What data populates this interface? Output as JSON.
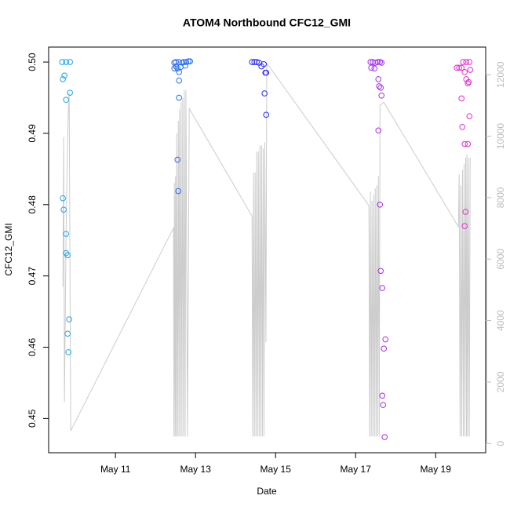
{
  "chart_data": {
    "type": "scatter",
    "title": "ATOM4 Northbound CFC12_GMI",
    "x_label": "Date",
    "y_label": "CFC12_GMI",
    "xlim": [
      9.33,
      20.25
    ],
    "xticks": [
      {
        "value": 11,
        "label": "May 11"
      },
      {
        "value": 13,
        "label": "May 13"
      },
      {
        "value": 15,
        "label": "May 15"
      },
      {
        "value": 17,
        "label": "May 17"
      },
      {
        "value": 19,
        "label": "May 19"
      }
    ],
    "ylim": [
      0.4452,
      0.5021
    ],
    "yticks": [
      0.45,
      0.46,
      0.47,
      0.48,
      0.49,
      {
        "value": 0.5,
        "label": "0.50"
      }
    ],
    "y2lim": [
      -300,
      12900
    ],
    "y2ticks": [
      0,
      2000,
      4000,
      6000,
      8000,
      10000,
      12000
    ],
    "series": [
      {
        "color": "#1fa5e8",
        "x": [
          9.667,
          9.765,
          9.863,
          9.686,
          9.725,
          9.765,
          9.863,
          9.686,
          9.706,
          9.765,
          9.765,
          9.804,
          9.843,
          9.804,
          9.824
        ],
        "values": [
          0.5,
          0.5,
          0.5,
          0.4976,
          0.4981,
          0.4947,
          0.4957,
          0.4809,
          0.4793,
          0.4759,
          0.4732,
          0.4729,
          0.4639,
          0.4619,
          0.4593
        ]
      },
      {
        "color": "#2a6be8",
        "x": [
          12.549,
          12.569,
          12.588,
          12.588,
          12.471,
          12.51,
          12.549,
          12.588,
          12.627,
          12.667,
          12.706,
          12.765,
          12.824,
          12.863,
          12.51,
          12.588,
          12.471,
          12.745
        ],
        "values": [
          0.4863,
          0.4819,
          0.495,
          0.4974,
          0.4999,
          0.4994,
          0.4991,
          0.4986,
          0.4993,
          0.4999,
          0.5,
          0.5,
          0.5001,
          0.5001,
          0.5,
          0.5,
          0.4991,
          0.4995
        ]
      },
      {
        "color": "#2b2bf0",
        "x": [
          14.412,
          14.471,
          14.529,
          14.588,
          14.647,
          14.706,
          14.745,
          14.765,
          14.725,
          14.765
        ],
        "values": [
          0.5,
          0.5,
          0.5,
          0.4999,
          0.4994,
          0.4997,
          0.4985,
          0.4985,
          0.4956,
          0.4926
        ]
      },
      {
        "color": "#a030e8",
        "x": [
          17.373,
          17.431,
          17.49,
          17.549,
          17.608,
          17.647,
          17.392,
          17.471,
          17.569,
          17.588,
          17.627,
          17.647,
          17.569,
          17.608,
          17.627,
          17.667,
          17.745,
          17.706,
          17.667,
          17.686,
          17.725
        ],
        "values": [
          0.5,
          0.5,
          0.4999,
          0.5,
          0.5,
          0.4999,
          0.4992,
          0.4991,
          0.4976,
          0.4966,
          0.4964,
          0.4953,
          0.4904,
          0.48,
          0.4707,
          0.4683,
          0.4611,
          0.4598,
          0.4532,
          0.4519,
          0.4474
        ]
      },
      {
        "color": "#e030d0",
        "x": [
          19.529,
          19.588,
          19.647,
          19.686,
          19.765,
          19.843,
          19.725,
          19.765,
          19.804,
          19.824,
          19.863,
          19.647,
          19.843,
          19.667,
          19.725,
          19.804,
          19.745,
          19.725
        ],
        "values": [
          0.4992,
          0.4992,
          0.4992,
          0.5,
          0.5,
          0.5,
          0.4986,
          0.4976,
          0.497,
          0.4972,
          0.4989,
          0.4949,
          0.4924,
          0.4909,
          0.4885,
          0.4885,
          0.479,
          0.477
        ]
      },
      {
        "type": "line",
        "axis": "y2",
        "color": "#cccccc",
        "x": [
          9.686,
          9.706,
          9.725,
          9.765,
          9.804,
          9.824,
          9.843,
          9.882,
          12.451,
          12.461,
          12.471,
          12.49,
          12.5,
          12.515,
          12.53,
          12.55,
          12.57,
          12.585,
          12.6,
          12.62,
          12.64,
          12.66,
          12.68,
          12.7,
          12.72,
          12.74,
          12.76,
          12.8,
          12.843,
          14.412,
          14.43,
          14.45,
          14.47,
          14.49,
          14.51,
          14.53,
          14.55,
          14.57,
          14.59,
          14.61,
          14.63,
          14.65,
          14.67,
          14.69,
          14.71,
          14.73,
          14.76,
          14.78,
          17.333,
          17.35,
          17.37,
          17.39,
          17.41,
          17.43,
          17.45,
          17.47,
          17.49,
          17.51,
          17.53,
          17.55,
          17.57,
          17.59,
          17.61,
          17.706,
          19.569,
          19.588,
          19.61,
          19.63,
          19.65,
          19.67,
          19.69,
          19.71,
          19.73,
          19.75,
          19.77,
          19.78,
          19.8,
          19.82,
          19.84,
          19.863
        ],
        "values": [
          5100,
          9980,
          1350,
          6770,
          9960,
          10850,
          11400,
          410,
          7020,
          230,
          8480,
          230,
          8700,
          230,
          10100,
          230,
          10500,
          230,
          10880,
          230,
          11100,
          230,
          11240,
          230,
          11500,
          230,
          11500,
          230,
          10900,
          7400,
          230,
          8820,
          230,
          8820,
          230,
          9500,
          230,
          9500,
          230,
          9700,
          230,
          9700,
          230,
          9600,
          230,
          9800,
          3300,
          12380,
          7740,
          230,
          8200,
          230,
          7900,
          230,
          8100,
          230,
          8300,
          230,
          8400,
          230,
          8700,
          230,
          11000,
          11100,
          7050,
          8760,
          230,
          8400,
          230,
          8900,
          230,
          9100,
          230,
          9300,
          230,
          9400,
          230,
          9300,
          230,
          9300
        ]
      }
    ]
  }
}
